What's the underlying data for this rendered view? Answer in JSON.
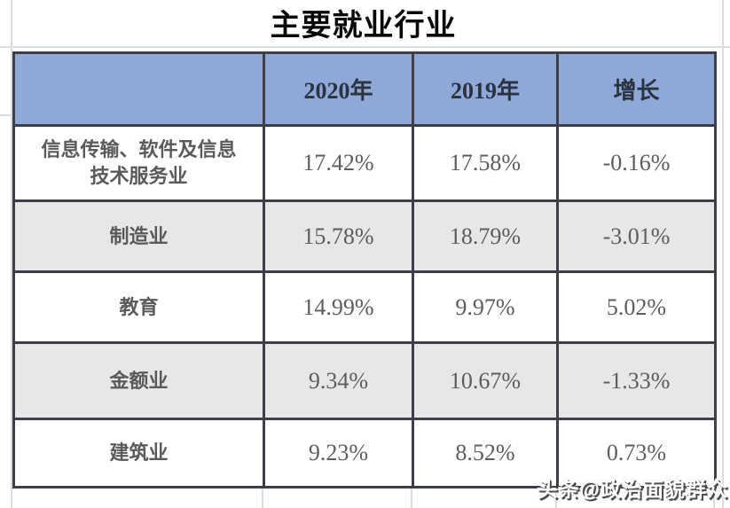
{
  "title": "主要就业行业",
  "watermark": "头条@政治面貌群众",
  "colors": {
    "header_blue": "#8ea8d8",
    "border_dark": "#3d3f48",
    "alt_row_gray": "#e8e7e7",
    "cell_text_gray": "#5d5d5d",
    "gridline_gray": "#dcdcdc"
  },
  "table": {
    "headers": [
      "",
      "2020年",
      "2019年",
      "增长"
    ],
    "rows": [
      {
        "label": "信息传输、软件及信息\n技术服务业",
        "y2020": "17.42%",
        "y2019": "17.58%",
        "growth": "-0.16%"
      },
      {
        "label": "制造业",
        "y2020": "15.78%",
        "y2019": "18.79%",
        "growth": "-3.01%"
      },
      {
        "label": "教育",
        "y2020": "14.99%",
        "y2019": "9.97%",
        "growth": "5.02%"
      },
      {
        "label": "金额业",
        "y2020": "9.34%",
        "y2019": "10.67%",
        "growth": "-1.33%"
      },
      {
        "label": "建筑业",
        "y2020": "9.23%",
        "y2019": "8.52%",
        "growth": "0.73%"
      }
    ]
  },
  "chart_data": {
    "type": "table",
    "title": "主要就业行业",
    "columns": [
      "",
      "2020年",
      "2019年",
      "增长"
    ],
    "rows": [
      [
        "信息传输、软件及信息技术服务业",
        "17.42%",
        "17.58%",
        "-0.16%"
      ],
      [
        "制造业",
        "15.78%",
        "18.79%",
        "-3.01%"
      ],
      [
        "教育",
        "14.99%",
        "9.97%",
        "5.02%"
      ],
      [
        "金额业",
        "9.34%",
        "10.67%",
        "-1.33%"
      ],
      [
        "建筑业",
        "9.23%",
        "8.52%",
        "0.73%"
      ]
    ]
  }
}
